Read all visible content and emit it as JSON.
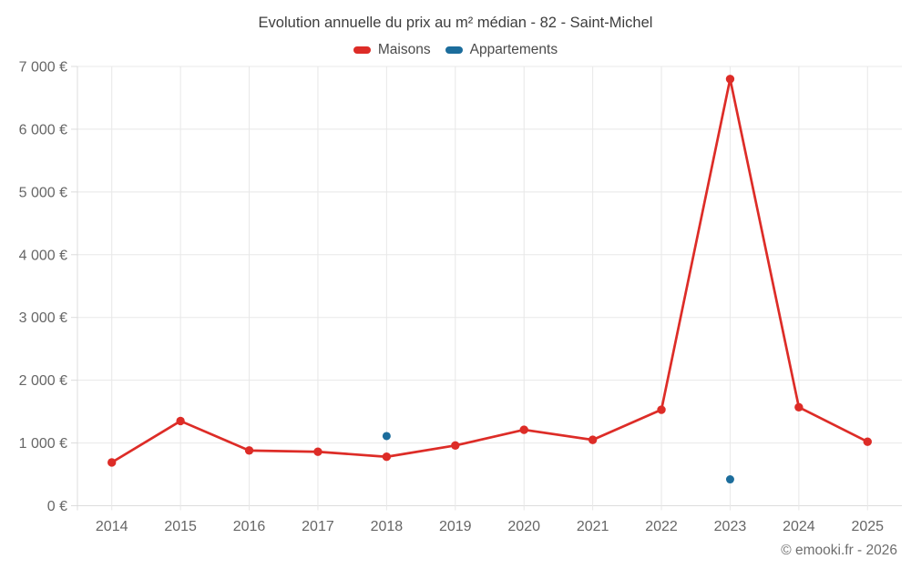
{
  "title": "Evolution annuelle du prix au m² médian - 82 - Saint-Michel",
  "legend": {
    "items": [
      {
        "label": "Maisons",
        "color": "#dd2c27"
      },
      {
        "label": "Appartements",
        "color": "#1c6d9c"
      }
    ]
  },
  "credits": "© emooki.fr - 2026",
  "colors": {
    "grid": "#e8e8e8",
    "axis": "#dcdcdc",
    "tick_text": "#666666",
    "title_text": "#3d3d3d",
    "maisons": "#dd2c27",
    "appartements": "#1c6d9c"
  },
  "chart_data": {
    "type": "line",
    "title": "Evolution annuelle du prix au m² médian - 82 - Saint-Michel",
    "categories": [
      "2014",
      "2015",
      "2016",
      "2017",
      "2018",
      "2019",
      "2020",
      "2021",
      "2022",
      "2023",
      "2024",
      "2025"
    ],
    "series": [
      {
        "name": "Maisons",
        "color": "#dd2c27",
        "draw_line": true,
        "marker_radius": 4.7,
        "values": [
          690,
          1350,
          880,
          860,
          780,
          960,
          1210,
          1050,
          1530,
          6800,
          1570,
          1020
        ]
      },
      {
        "name": "Appartements",
        "color": "#1c6d9c",
        "draw_line": false,
        "marker_radius": 4.5,
        "values": [
          null,
          null,
          null,
          null,
          1110,
          null,
          null,
          null,
          null,
          420,
          null,
          null
        ]
      }
    ],
    "xlabel": "",
    "ylabel": "",
    "ylim": [
      0,
      7000
    ],
    "y_ticks": [
      0,
      1000,
      2000,
      3000,
      4000,
      5000,
      6000,
      7000
    ],
    "y_tick_labels": [
      "0 €",
      "1 000 €",
      "2 000 €",
      "3 000 €",
      "4 000 €",
      "5 000 €",
      "6 000 €",
      "7 000 €"
    ],
    "grid": true,
    "legend_position": "top"
  }
}
